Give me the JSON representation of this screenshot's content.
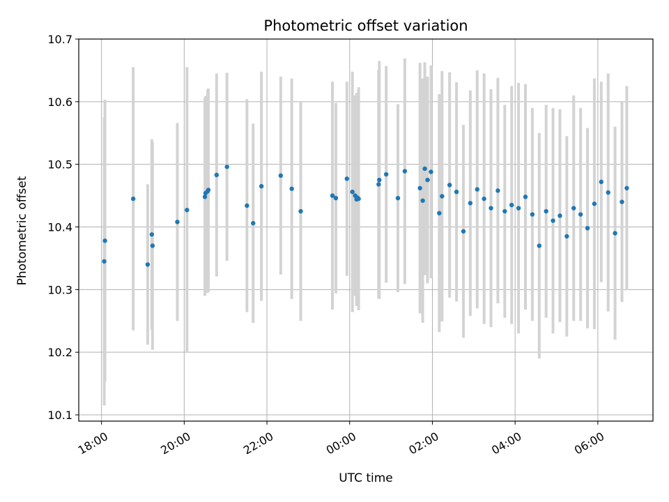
{
  "chart_data": {
    "type": "scatter",
    "title": "Photometric offset variation",
    "xlabel": "UTC time",
    "ylabel": "Photometric offset",
    "xlim": [
      "17:27",
      "07:20"
    ],
    "ylim": [
      10.09,
      10.7
    ],
    "grid": true,
    "error_bar_color": "#d3d3d3",
    "marker_color": "#1f77b4",
    "x_ticks": [
      "18:00",
      "20:00",
      "22:00",
      "00:00",
      "02:00",
      "04:00",
      "06:00"
    ],
    "y_ticks": [
      "10.1",
      "10.2",
      "10.3",
      "10.4",
      "10.5",
      "10.6",
      "10.7"
    ],
    "series": [
      {
        "points": [
          {
            "t": "18:04",
            "y": 10.345,
            "err": 0.23
          },
          {
            "t": "18:05",
            "y": 10.378,
            "err": 0.225
          },
          {
            "t": "18:46",
            "y": 10.445,
            "err": 0.21
          },
          {
            "t": "19:07",
            "y": 10.34,
            "err": 0.128
          },
          {
            "t": "19:13",
            "y": 10.388,
            "err": 0.152
          },
          {
            "t": "19:14",
            "y": 10.37,
            "err": 0.166
          },
          {
            "t": "19:50",
            "y": 10.408,
            "err": 0.158
          },
          {
            "t": "20:04",
            "y": 10.427,
            "err": 0.228
          },
          {
            "t": "20:30",
            "y": 10.448,
            "err": 0.158
          },
          {
            "t": "20:31",
            "y": 10.454,
            "err": 0.155
          },
          {
            "t": "20:34",
            "y": 10.457,
            "err": 0.162
          },
          {
            "t": "20:35",
            "y": 10.459,
            "err": 0.162
          },
          {
            "t": "20:47",
            "y": 10.483,
            "err": 0.162
          },
          {
            "t": "21:02",
            "y": 10.496,
            "err": 0.15
          },
          {
            "t": "21:31",
            "y": 10.434,
            "err": 0.17
          },
          {
            "t": "21:40",
            "y": 10.406,
            "err": 0.159
          },
          {
            "t": "21:52",
            "y": 10.465,
            "err": 0.183
          },
          {
            "t": "22:20",
            "y": 10.482,
            "err": 0.158
          },
          {
            "t": "22:36",
            "y": 10.461,
            "err": 0.176
          },
          {
            "t": "22:49",
            "y": 10.425,
            "err": 0.175
          },
          {
            "t": "23:35",
            "y": 10.45,
            "err": 0.182
          },
          {
            "t": "23:40",
            "y": 10.446,
            "err": 0.152
          },
          {
            "t": "23:56",
            "y": 10.477,
            "err": 0.155
          },
          {
            "t": "00:04",
            "y": 10.456,
            "err": 0.192
          },
          {
            "t": "00:08",
            "y": 10.45,
            "err": 0.16
          },
          {
            "t": "00:10",
            "y": 10.444,
            "err": 0.17
          },
          {
            "t": "00:11",
            "y": 10.447,
            "err": 0.162
          },
          {
            "t": "00:13",
            "y": 10.445,
            "err": 0.178
          },
          {
            "t": "00:42",
            "y": 10.468,
            "err": 0.182
          },
          {
            "t": "00:43",
            "y": 10.475,
            "err": 0.19
          },
          {
            "t": "00:53",
            "y": 10.484,
            "err": 0.173
          },
          {
            "t": "01:10",
            "y": 10.446,
            "err": 0.15
          },
          {
            "t": "01:20",
            "y": 10.489,
            "err": 0.18
          },
          {
            "t": "01:42",
            "y": 10.462,
            "err": 0.2
          },
          {
            "t": "01:46",
            "y": 10.442,
            "err": 0.195
          },
          {
            "t": "01:49",
            "y": 10.493,
            "err": 0.17
          },
          {
            "t": "01:53",
            "y": 10.475,
            "err": 0.165
          },
          {
            "t": "01:58",
            "y": 10.488,
            "err": 0.17
          },
          {
            "t": "02:10",
            "y": 10.422,
            "err": 0.19
          },
          {
            "t": "02:14",
            "y": 10.449,
            "err": 0.2
          },
          {
            "t": "02:25",
            "y": 10.467,
            "err": 0.18
          },
          {
            "t": "02:35",
            "y": 10.456,
            "err": 0.175
          },
          {
            "t": "02:45",
            "y": 10.393,
            "err": 0.17
          },
          {
            "t": "02:55",
            "y": 10.438,
            "err": 0.18
          },
          {
            "t": "03:05",
            "y": 10.46,
            "err": 0.19
          },
          {
            "t": "03:15",
            "y": 10.445,
            "err": 0.2
          },
          {
            "t": "03:25",
            "y": 10.43,
            "err": 0.19
          },
          {
            "t": "03:35",
            "y": 10.458,
            "err": 0.18
          },
          {
            "t": "03:45",
            "y": 10.425,
            "err": 0.17
          },
          {
            "t": "03:55",
            "y": 10.435,
            "err": 0.19
          },
          {
            "t": "04:05",
            "y": 10.43,
            "err": 0.2
          },
          {
            "t": "04:15",
            "y": 10.448,
            "err": 0.18
          },
          {
            "t": "04:25",
            "y": 10.42,
            "err": 0.17
          },
          {
            "t": "04:35",
            "y": 10.37,
            "err": 0.18
          },
          {
            "t": "04:45",
            "y": 10.425,
            "err": 0.17
          },
          {
            "t": "04:55",
            "y": 10.41,
            "err": 0.18
          },
          {
            "t": "05:05",
            "y": 10.418,
            "err": 0.17
          },
          {
            "t": "05:15",
            "y": 10.385,
            "err": 0.16
          },
          {
            "t": "05:25",
            "y": 10.43,
            "err": 0.18
          },
          {
            "t": "05:35",
            "y": 10.42,
            "err": 0.17
          },
          {
            "t": "05:45",
            "y": 10.398,
            "err": 0.16
          },
          {
            "t": "05:55",
            "y": 10.437,
            "err": 0.2
          },
          {
            "t": "06:05",
            "y": 10.472,
            "err": 0.16
          },
          {
            "t": "06:15",
            "y": 10.455,
            "err": 0.19
          },
          {
            "t": "06:25",
            "y": 10.39,
            "err": 0.17
          },
          {
            "t": "06:35",
            "y": 10.44,
            "err": 0.16
          },
          {
            "t": "06:42",
            "y": 10.462,
            "err": 0.163
          }
        ]
      }
    ]
  }
}
